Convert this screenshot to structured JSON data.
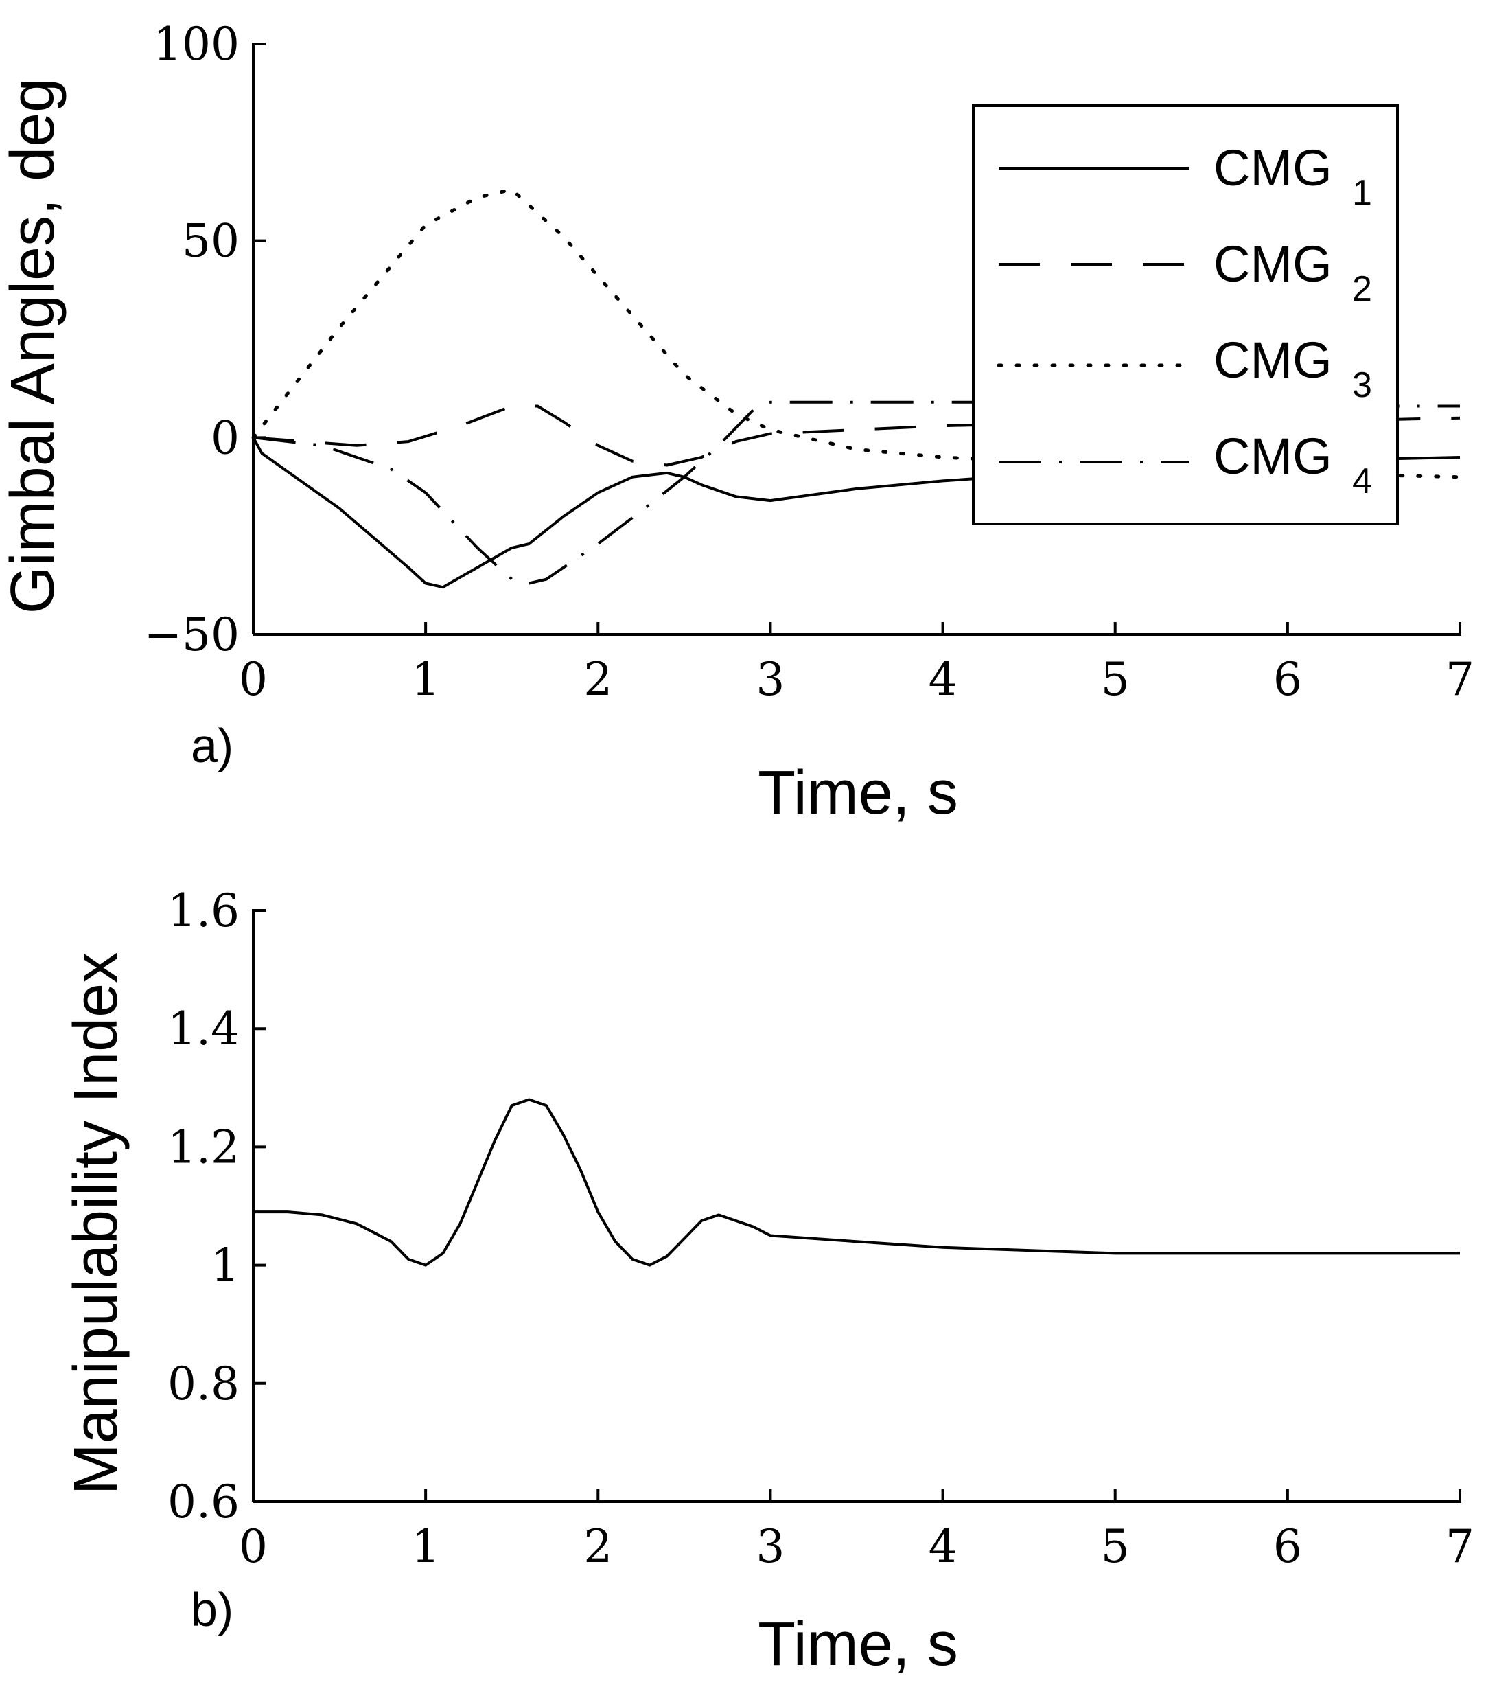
{
  "chart_data": [
    {
      "type": "line",
      "panel_label": "a)",
      "title": "",
      "xlabel": "Time, s",
      "ylabel": "Gimbal Angles, deg",
      "xlim": [
        0,
        7
      ],
      "ylim": [
        -50,
        100
      ],
      "xticks": [
        0,
        1,
        2,
        3,
        4,
        5,
        6,
        7
      ],
      "xtick_labels": [
        "0",
        "1",
        "2",
        "3",
        "4",
        "5",
        "6",
        "7"
      ],
      "yticks": [
        -50,
        0,
        50,
        100
      ],
      "ytick_labels": [
        "−50",
        "0",
        "50",
        "100"
      ],
      "grid": false,
      "legend_position": "top-right",
      "series": [
        {
          "name": "CMG 1",
          "label_main": "CMG",
          "label_sub": "1",
          "style": "solid",
          "x": [
            0,
            0.05,
            0.5,
            0.9,
            1.0,
            1.1,
            1.3,
            1.5,
            1.6,
            1.8,
            2.0,
            2.2,
            2.4,
            2.5,
            2.6,
            2.8,
            3.0,
            3.5,
            4.0,
            5.0,
            6.0,
            7.0
          ],
          "y": [
            0,
            -4,
            -18,
            -33,
            -37,
            -38,
            -33,
            -28,
            -27,
            -20,
            -14,
            -10,
            -9,
            -10,
            -12,
            -15,
            -16,
            -13,
            -11,
            -8,
            -6,
            -5
          ]
        },
        {
          "name": "CMG 2",
          "label_main": "CMG",
          "label_sub": "2",
          "style": "dashed",
          "x": [
            0,
            0.3,
            0.6,
            0.9,
            1.2,
            1.5,
            1.65,
            1.8,
            2.0,
            2.2,
            2.4,
            2.6,
            2.8,
            3.0,
            3.5,
            4.0,
            5.0,
            6.0,
            7.0
          ],
          "y": [
            0,
            -1,
            -2,
            -1,
            3,
            8,
            8,
            4,
            -2,
            -6,
            -7,
            -5,
            -1,
            1,
            2,
            3,
            4,
            4,
            5
          ]
        },
        {
          "name": "CMG 3",
          "label_main": "CMG",
          "label_sub": "3",
          "style": "dotted",
          "x": [
            0,
            0.5,
            1.0,
            1.3,
            1.5,
            1.8,
            2.1,
            2.5,
            2.8,
            3.0,
            3.5,
            4.0,
            5.0,
            6.0,
            7.0
          ],
          "y": [
            0,
            28,
            54,
            61,
            63,
            51,
            36,
            16,
            6,
            2,
            -3,
            -5,
            -7,
            -9,
            -10
          ]
        },
        {
          "name": "CMG 4",
          "label_main": "CMG",
          "label_sub": "4",
          "style": "dashdot",
          "x": [
            0,
            0.4,
            0.8,
            1.0,
            1.3,
            1.5,
            1.6,
            1.7,
            2.0,
            2.3,
            2.5,
            2.7,
            2.9,
            3.0,
            3.5,
            4.0,
            5.0,
            6.0,
            7.0
          ],
          "y": [
            0,
            -2,
            -8,
            -14,
            -28,
            -36,
            -37,
            -36,
            -27,
            -17,
            -10,
            -2,
            7,
            9,
            9,
            9,
            9,
            8,
            8
          ]
        }
      ]
    },
    {
      "type": "line",
      "panel_label": "b)",
      "title": "",
      "xlabel": "Time, s",
      "ylabel": "Manipulability Index",
      "xlim": [
        0,
        7
      ],
      "ylim": [
        0.6,
        1.6
      ],
      "xticks": [
        0,
        1,
        2,
        3,
        4,
        5,
        6,
        7
      ],
      "xtick_labels": [
        "0",
        "1",
        "2",
        "3",
        "4",
        "5",
        "6",
        "7"
      ],
      "yticks": [
        0.6,
        0.8,
        1.0,
        1.2,
        1.4,
        1.6
      ],
      "ytick_labels": [
        "0.6",
        "0.8",
        "1",
        "1.2",
        "1.4",
        "1.6"
      ],
      "grid": false,
      "series": [
        {
          "name": "Manipulability Index",
          "style": "solid",
          "x": [
            0,
            0.2,
            0.4,
            0.6,
            0.8,
            0.9,
            1.0,
            1.1,
            1.2,
            1.3,
            1.4,
            1.5,
            1.6,
            1.7,
            1.8,
            1.9,
            2.0,
            2.1,
            2.2,
            2.3,
            2.4,
            2.5,
            2.6,
            2.7,
            2.8,
            2.9,
            3.0,
            3.5,
            4.0,
            5.0,
            6.0,
            7.0
          ],
          "y": [
            1.09,
            1.09,
            1.085,
            1.07,
            1.04,
            1.01,
            1.0,
            1.02,
            1.07,
            1.14,
            1.21,
            1.27,
            1.28,
            1.27,
            1.22,
            1.16,
            1.09,
            1.04,
            1.01,
            1.0,
            1.015,
            1.045,
            1.075,
            1.085,
            1.075,
            1.065,
            1.05,
            1.04,
            1.03,
            1.02,
            1.02,
            1.02
          ]
        }
      ]
    }
  ]
}
